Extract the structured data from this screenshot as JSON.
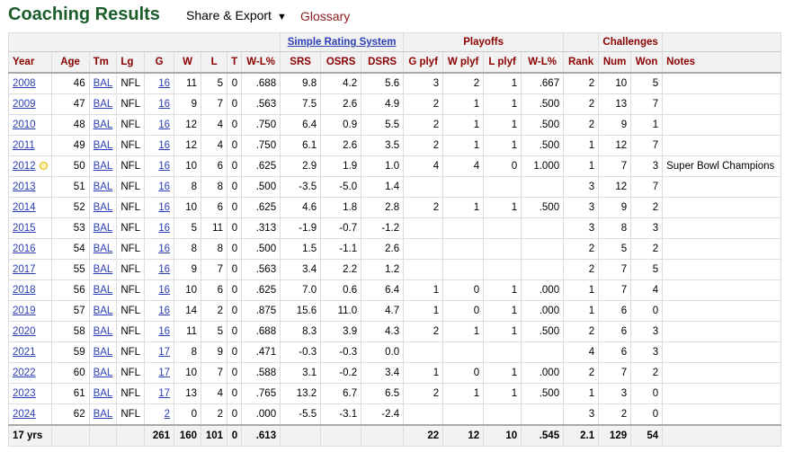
{
  "header": {
    "title": "Coaching Results",
    "share_label": "Share & Export",
    "glossary_label": "Glossary"
  },
  "over_header": {
    "srs_group": "Simple Rating System",
    "playoffs_group": "Playoffs",
    "challenges_group": "Challenges"
  },
  "columns": [
    "Year",
    "Age",
    "Tm",
    "Lg",
    "G",
    "W",
    "L",
    "T",
    "W-L%",
    "SRS",
    "OSRS",
    "DSRS",
    "G plyf",
    "W plyf",
    "L plyf",
    "W-L%",
    "Rank",
    "Num",
    "Won",
    "Notes"
  ],
  "rows": [
    [
      "2008",
      "46",
      "BAL",
      "NFL",
      "16",
      "11",
      "5",
      "0",
      ".688",
      "9.8",
      "4.2",
      "5.6",
      "3",
      "2",
      "1",
      ".667",
      "2",
      "10",
      "5",
      ""
    ],
    [
      "2009",
      "47",
      "BAL",
      "NFL",
      "16",
      "9",
      "7",
      "0",
      ".563",
      "7.5",
      "2.6",
      "4.9",
      "2",
      "1",
      "1",
      ".500",
      "2",
      "13",
      "7",
      ""
    ],
    [
      "2010",
      "48",
      "BAL",
      "NFL",
      "16",
      "12",
      "4",
      "0",
      ".750",
      "6.4",
      "0.9",
      "5.5",
      "2",
      "1",
      "1",
      ".500",
      "2",
      "9",
      "1",
      ""
    ],
    [
      "2011",
      "49",
      "BAL",
      "NFL",
      "16",
      "12",
      "4",
      "0",
      ".750",
      "6.1",
      "2.6",
      "3.5",
      "2",
      "1",
      "1",
      ".500",
      "1",
      "12",
      "7",
      ""
    ],
    [
      "2012",
      "50",
      "BAL",
      "NFL",
      "16",
      "10",
      "6",
      "0",
      ".625",
      "2.9",
      "1.9",
      "1.0",
      "4",
      "4",
      "0",
      "1.000",
      "1",
      "7",
      "3",
      "Super Bowl Champions"
    ],
    [
      "2013",
      "51",
      "BAL",
      "NFL",
      "16",
      "8",
      "8",
      "0",
      ".500",
      "-3.5",
      "-5.0",
      "1.4",
      "",
      "",
      "",
      "",
      "3",
      "12",
      "7",
      ""
    ],
    [
      "2014",
      "52",
      "BAL",
      "NFL",
      "16",
      "10",
      "6",
      "0",
      ".625",
      "4.6",
      "1.8",
      "2.8",
      "2",
      "1",
      "1",
      ".500",
      "3",
      "9",
      "2",
      ""
    ],
    [
      "2015",
      "53",
      "BAL",
      "NFL",
      "16",
      "5",
      "11",
      "0",
      ".313",
      "-1.9",
      "-0.7",
      "-1.2",
      "",
      "",
      "",
      "",
      "3",
      "8",
      "3",
      ""
    ],
    [
      "2016",
      "54",
      "BAL",
      "NFL",
      "16",
      "8",
      "8",
      "0",
      ".500",
      "1.5",
      "-1.1",
      "2.6",
      "",
      "",
      "",
      "",
      "2",
      "5",
      "2",
      ""
    ],
    [
      "2017",
      "55",
      "BAL",
      "NFL",
      "16",
      "9",
      "7",
      "0",
      ".563",
      "3.4",
      "2.2",
      "1.2",
      "",
      "",
      "",
      "",
      "2",
      "7",
      "5",
      ""
    ],
    [
      "2018",
      "56",
      "BAL",
      "NFL",
      "16",
      "10",
      "6",
      "0",
      ".625",
      "7.0",
      "0.6",
      "6.4",
      "1",
      "0",
      "1",
      ".000",
      "1",
      "7",
      "4",
      ""
    ],
    [
      "2019",
      "57",
      "BAL",
      "NFL",
      "16",
      "14",
      "2",
      "0",
      ".875",
      "15.6",
      "11.0",
      "4.7",
      "1",
      "0",
      "1",
      ".000",
      "1",
      "6",
      "0",
      ""
    ],
    [
      "2020",
      "58",
      "BAL",
      "NFL",
      "16",
      "11",
      "5",
      "0",
      ".688",
      "8.3",
      "3.9",
      "4.3",
      "2",
      "1",
      "1",
      ".500",
      "2",
      "6",
      "3",
      ""
    ],
    [
      "2021",
      "59",
      "BAL",
      "NFL",
      "17",
      "8",
      "9",
      "0",
      ".471",
      "-0.3",
      "-0.3",
      "0.0",
      "",
      "",
      "",
      "",
      "4",
      "6",
      "3",
      ""
    ],
    [
      "2022",
      "60",
      "BAL",
      "NFL",
      "17",
      "10",
      "7",
      "0",
      ".588",
      "3.1",
      "-0.2",
      "3.4",
      "1",
      "0",
      "1",
      ".000",
      "2",
      "7",
      "2",
      ""
    ],
    [
      "2023",
      "61",
      "BAL",
      "NFL",
      "17",
      "13",
      "4",
      "0",
      ".765",
      "13.2",
      "6.7",
      "6.5",
      "2",
      "1",
      "1",
      ".500",
      "1",
      "3",
      "0",
      ""
    ],
    [
      "2024",
      "62",
      "BAL",
      "NFL",
      "2",
      "0",
      "2",
      "0",
      ".000",
      "-5.5",
      "-3.1",
      "-2.4",
      "",
      "",
      "",
      "",
      "3",
      "2",
      "0",
      ""
    ]
  ],
  "footer": [
    "17 yrs",
    "",
    "",
    "",
    "261",
    "160",
    "101",
    "0",
    ".613",
    "",
    "",
    "",
    "22",
    "12",
    "10",
    ".545",
    "2.1",
    "129",
    "54",
    ""
  ],
  "colors": {
    "title": "#1a5c2a",
    "header_text": "#8b0000",
    "link": "#2b3fb5",
    "glossary": "#8b1a1a"
  },
  "icons": {
    "share_caret": "caret-down-icon",
    "champion_marker": "trophy-dot-icon"
  }
}
